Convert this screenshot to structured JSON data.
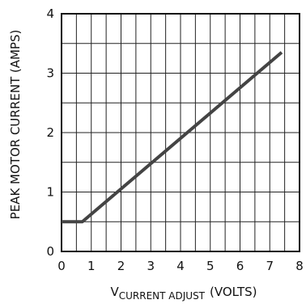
{
  "chart_data": {
    "type": "line",
    "xlabel_main": "V",
    "xlabel_sub": "CURRENT ADJUST",
    "xlabel_units": "(VOLTS)",
    "ylabel": "PEAK MOTOR CURRENT (AMPS)",
    "xlim": [
      0,
      8
    ],
    "ylim": [
      0,
      4
    ],
    "x_ticks": [
      "0",
      "1",
      "2",
      "3",
      "4",
      "5",
      "6",
      "7",
      "8"
    ],
    "y_ticks": [
      "0",
      "1",
      "2",
      "3",
      "4"
    ],
    "grid": true,
    "series": [
      {
        "x": [
          0,
          0.7,
          7.4
        ],
        "y": [
          0.5,
          0.5,
          3.35
        ]
      }
    ],
    "line_color": "#444444"
  }
}
